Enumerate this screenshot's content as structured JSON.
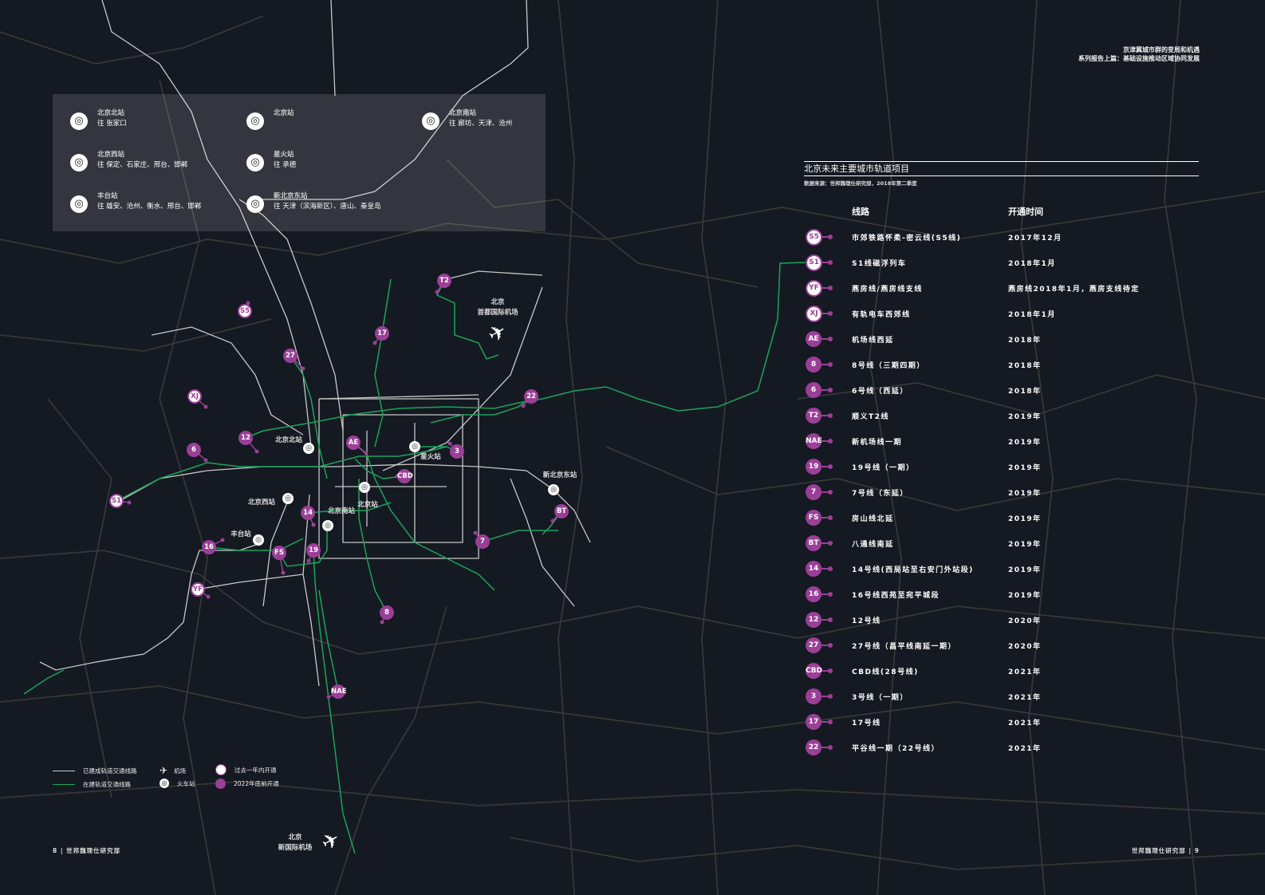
{
  "header": {
    "line1": "京津冀城市群的变局和机遇",
    "line2": "系列报告上篇：基础设施推动区域协同发展"
  },
  "stations_panel": [
    {
      "name": "北京北站",
      "dest": "往 张家口"
    },
    {
      "name": "北京站",
      "dest": ""
    },
    {
      "name": "北京南站",
      "dest": "往 廊坊、天津、沧州"
    },
    {
      "name": "北京西站",
      "dest": "往 保定、石家庄、邢台、邯郸"
    },
    {
      "name": "星火站",
      "dest": "往 承德"
    },
    {
      "name": "丰台站",
      "dest": "往 雄安、沧州、衡水、邢台、邯郸"
    },
    {
      "name": "新北京东站",
      "dest": "往 天津（滨海新区）、唐山、秦皇岛"
    }
  ],
  "table": {
    "title": "北京未来主要城市轨道项目",
    "source": "数据来源：世邦魏理仕研究部，2018年第二季度",
    "col_line": "线路",
    "col_date": "开通时间",
    "rows": [
      {
        "code": "S5",
        "status": "opened",
        "line": "市郊铁路怀柔-密云线(S5线)",
        "date": "2017年12月"
      },
      {
        "code": "S1",
        "status": "opened",
        "line": "S1线磁浮列车",
        "date": "2018年1月"
      },
      {
        "code": "YF",
        "status": "opened",
        "line": "燕房线/燕房线支线",
        "date": "燕房线2018年1月，燕房支线待定"
      },
      {
        "code": "XJ",
        "status": "opened",
        "line": "有轨电车西郊线",
        "date": "2018年1月"
      },
      {
        "code": "AE",
        "status": "planned",
        "line": "机场线西延",
        "date": "2018年"
      },
      {
        "code": "8",
        "status": "planned",
        "line": "8号线（三期四期）",
        "date": "2018年"
      },
      {
        "code": "6",
        "status": "planned",
        "line": "6号线（西延）",
        "date": "2018年"
      },
      {
        "code": "T2",
        "status": "planned",
        "line": "顺义T2线",
        "date": "2019年"
      },
      {
        "code": "NAE",
        "status": "planned",
        "line": "新机场线一期",
        "date": "2019年"
      },
      {
        "code": "19",
        "status": "planned",
        "line": "19号线（一期）",
        "date": "2019年"
      },
      {
        "code": "7",
        "status": "planned",
        "line": "7号线（东延）",
        "date": "2019年"
      },
      {
        "code": "FS",
        "status": "planned",
        "line": "房山线北延",
        "date": "2019年"
      },
      {
        "code": "BT",
        "status": "planned",
        "line": "八通线南延",
        "date": "2019年"
      },
      {
        "code": "14",
        "status": "planned",
        "line": "14号线(西局站至右安门外站段)",
        "date": "2019年"
      },
      {
        "code": "16",
        "status": "planned",
        "line": "16号线西苑至宛平城段",
        "date": "2019年"
      },
      {
        "code": "12",
        "status": "planned",
        "line": "12号线",
        "date": "2020年"
      },
      {
        "code": "27",
        "status": "planned",
        "line": "27号线（昌平线南延一期）",
        "date": "2020年"
      },
      {
        "code": "CBD",
        "status": "planned",
        "line": "CBD线(28号线)",
        "date": "2021年"
      },
      {
        "code": "3",
        "status": "planned",
        "line": "3号线（一期）",
        "date": "2021年"
      },
      {
        "code": "17",
        "status": "planned",
        "line": "17号线",
        "date": "2021年"
      },
      {
        "code": "22",
        "status": "planned",
        "line": "平谷线一期（22号线）",
        "date": "2021年"
      }
    ]
  },
  "map": {
    "markers": [
      "S5",
      "T2",
      "17",
      "27",
      "XJ",
      "22",
      "12",
      "AE",
      "6",
      "3",
      "CBD",
      "S1",
      "BT",
      "14",
      "7",
      "16",
      "FS",
      "19",
      "YF",
      "8",
      "NAE"
    ],
    "station_labels": [
      "北京北站",
      "星火站",
      "北京站",
      "新北京东站",
      "北京西站",
      "北京南站",
      "丰台站"
    ],
    "airport_capital": {
      "line1": "北京",
      "line2": "首都国际机场"
    },
    "airport_daxing": {
      "line1": "北京",
      "line2": "新国际机场"
    }
  },
  "legend": {
    "existing": "已建成轨道交通线路",
    "construction": "在建轨道交通线路",
    "airport": "机场",
    "train_station": "火车站",
    "opened_past_year": "过去一年内开通",
    "open_by_2022": "2022年底前开通"
  },
  "footer": {
    "left": "8 | 世邦魏理仕研究部",
    "right": "世邦魏理仕研究部 | 9"
  },
  "colors": {
    "background": "#151922",
    "purple": "#9a3f97",
    "green": "#1aa55a",
    "existing_line": "#c8c8c8",
    "road": "#3a3a3a"
  }
}
